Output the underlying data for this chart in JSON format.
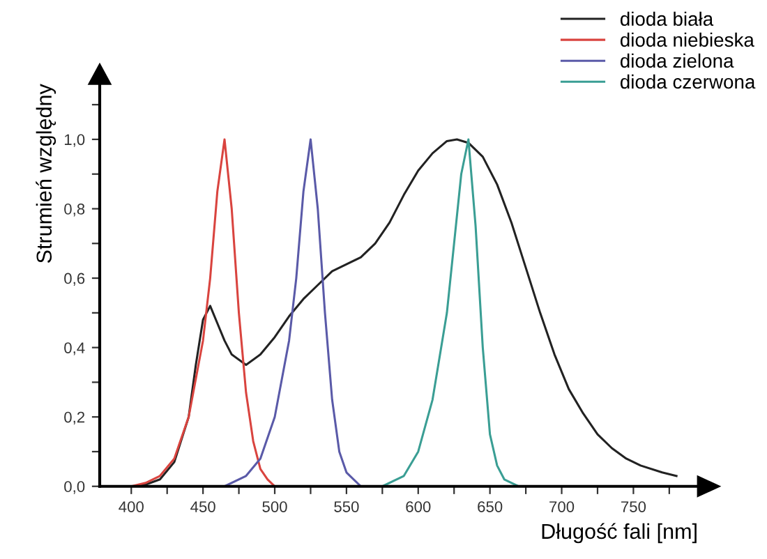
{
  "chart_data": {
    "type": "line",
    "xlabel": "Długość fali [nm]",
    "ylabel": "Strumień względny",
    "xlim": [
      378,
      795
    ],
    "ylim": [
      0,
      1.16
    ],
    "xticks": [
      400,
      {
        "value": 425,
        "label": null
      },
      450,
      {
        "value": 475,
        "label": null
      },
      500,
      {
        "value": 525,
        "label": null
      },
      550,
      {
        "value": 575,
        "label": null
      },
      600,
      {
        "value": 625,
        "label": null
      },
      650,
      {
        "value": 675,
        "label": null
      },
      700,
      {
        "value": 725,
        "label": null
      },
      750,
      {
        "value": 775,
        "label": null
      }
    ],
    "yticks": [
      {
        "value": 0,
        "label": "0,0"
      },
      {
        "value": 0.1,
        "label": null
      },
      {
        "value": 0.2,
        "label": "0,2"
      },
      {
        "value": 0.3,
        "label": null
      },
      {
        "value": 0.4,
        "label": "0,4"
      },
      {
        "value": 0.5,
        "label": null
      },
      {
        "value": 0.6,
        "label": "0,6"
      },
      {
        "value": 0.7,
        "label": null
      },
      {
        "value": 0.8,
        "label": "0,8"
      },
      {
        "value": 0.9,
        "label": null
      },
      {
        "value": 1.0,
        "label": "1,0"
      },
      {
        "value": 1.1,
        "label": null
      }
    ],
    "grid": false,
    "legend": "top right",
    "marker": "none",
    "line_style": "solid",
    "series": [
      {
        "name": "dioda biała",
        "color": "#222222",
        "x": [
          405,
          410,
          420,
          430,
          440,
          445,
          450,
          455,
          460,
          465,
          470,
          480,
          490,
          500,
          510,
          520,
          530,
          540,
          550,
          560,
          570,
          580,
          590,
          600,
          610,
          620,
          627,
          635,
          645,
          655,
          665,
          675,
          685,
          695,
          705,
          715,
          725,
          735,
          745,
          755,
          770,
          780
        ],
        "values": [
          0,
          0.005,
          0.02,
          0.07,
          0.2,
          0.35,
          0.48,
          0.52,
          0.47,
          0.42,
          0.38,
          0.35,
          0.38,
          0.43,
          0.49,
          0.54,
          0.58,
          0.62,
          0.64,
          0.66,
          0.7,
          0.76,
          0.84,
          0.91,
          0.96,
          0.995,
          1.0,
          0.99,
          0.95,
          0.87,
          0.76,
          0.63,
          0.5,
          0.38,
          0.28,
          0.21,
          0.15,
          0.11,
          0.08,
          0.06,
          0.04,
          0.03
        ]
      },
      {
        "name": "dioda niebieska",
        "color": "#d9443f",
        "x": [
          400,
          410,
          420,
          430,
          440,
          450,
          455,
          460,
          465,
          470,
          475,
          480,
          485,
          490,
          495,
          500
        ],
        "values": [
          0,
          0.01,
          0.03,
          0.08,
          0.2,
          0.42,
          0.6,
          0.85,
          1.0,
          0.8,
          0.5,
          0.27,
          0.13,
          0.05,
          0.02,
          0
        ]
      },
      {
        "name": "dioda zielona",
        "color": "#5a5aa8",
        "x": [
          465,
          480,
          490,
          500,
          510,
          515,
          520,
          525,
          530,
          535,
          540,
          545,
          550,
          560
        ],
        "values": [
          0,
          0.03,
          0.08,
          0.2,
          0.42,
          0.6,
          0.85,
          1.0,
          0.8,
          0.5,
          0.25,
          0.1,
          0.04,
          0
        ]
      },
      {
        "name": "dioda czerwona",
        "color": "#3a9e94",
        "x": [
          575,
          590,
          600,
          610,
          620,
          625,
          630,
          635,
          640,
          645,
          650,
          655,
          660,
          670
        ],
        "values": [
          0,
          0.03,
          0.1,
          0.25,
          0.5,
          0.7,
          0.9,
          1.0,
          0.75,
          0.4,
          0.15,
          0.06,
          0.02,
          0
        ]
      }
    ]
  }
}
